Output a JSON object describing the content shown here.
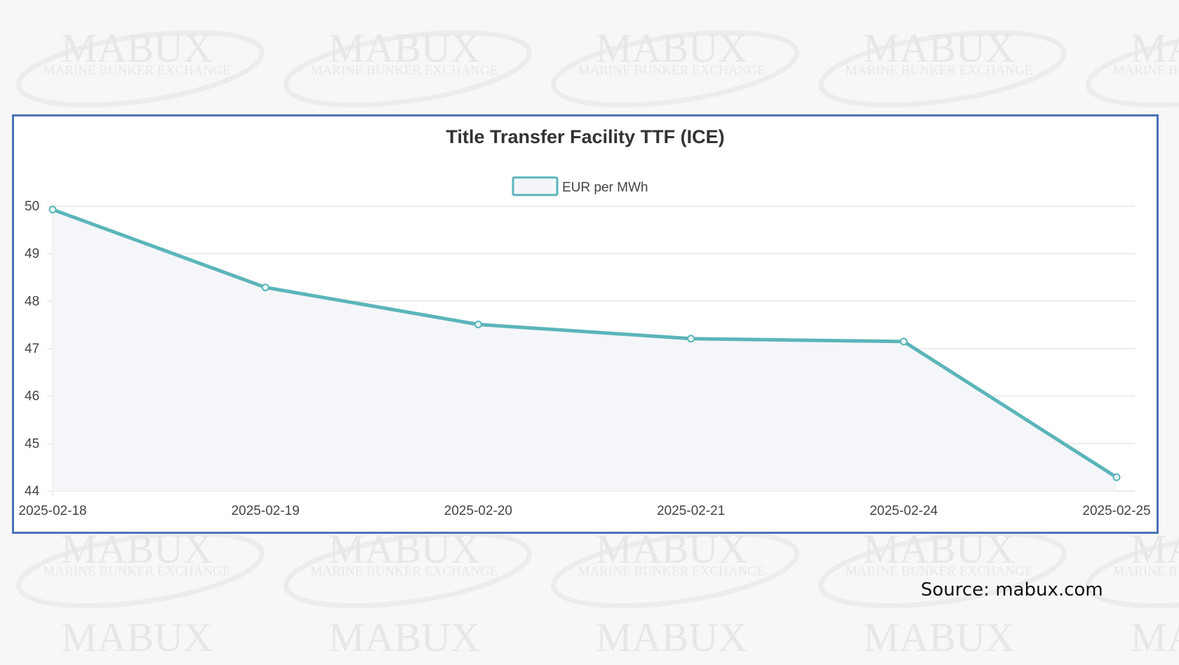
{
  "watermark": {
    "brand": "MABUX",
    "tagline": "MARINE BUNKER EXCHANGE"
  },
  "source_note": "Source: mabux.com",
  "colors": {
    "series_line": "#5bb5b9",
    "series_fill": "#f4f6fa",
    "frame_border": "#4a72b8",
    "grid": "#e6e6e6",
    "text": "#444444"
  },
  "chart_data": {
    "type": "area",
    "title": "Title Transfer Facility TTF (ICE)",
    "categories": [
      "2025-02-18",
      "2025-02-19",
      "2025-02-20",
      "2025-02-21",
      "2025-02-24",
      "2025-02-25"
    ],
    "series": [
      {
        "name": "EUR per MWh",
        "values": [
          49.93,
          48.29,
          47.51,
          47.21,
          47.15,
          44.29
        ]
      }
    ],
    "ylim": [
      44,
      50
    ],
    "yticks": [
      44,
      45,
      46,
      47,
      48,
      49,
      50
    ],
    "xlabel": "",
    "ylabel": "",
    "grid": true,
    "legend_position": "top-center"
  }
}
